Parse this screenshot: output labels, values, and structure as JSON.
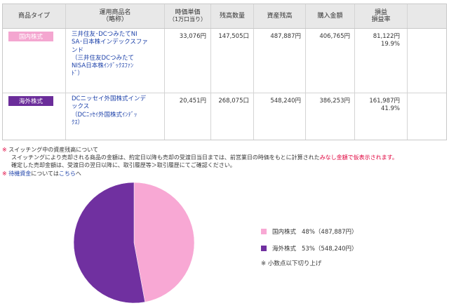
{
  "table": {
    "headers": {
      "type": "商品タイプ",
      "name_line1": "運用商品名",
      "name_line2": "（略称）",
      "unit_price_line1": "時価単価",
      "unit_price_line2": "（1万口当り）",
      "quantity": "残高数量",
      "balance": "資産残高",
      "purchase": "購入金額",
      "pl_line1": "損益",
      "pl_line2": "損益率"
    },
    "rows": [
      {
        "type": "国内株式",
        "type_color": "#f4a6d0",
        "name": "三井住友･DCつみたてNI\nSA･日本株インデックスファ\nンド\n（三井住友DCつみたて\nNISA日本株ｲﾝﾃﾞｯｸｽﾌｧﾝ\nﾄﾞ）",
        "unit_price": "33,076円",
        "quantity": "147,505口",
        "balance": "487,887円",
        "purchase": "406,765円",
        "pl": "81,122円",
        "pl_rate": "19.9%"
      },
      {
        "type": "海外株式",
        "type_color": "#6b2d9a",
        "name": "DCニッセイ外国株式インデ\nックス\n（DCﾆｯｾｲ外国株式ｲﾝﾃﾞｯ\nｸｽ）",
        "unit_price": "20,451円",
        "quantity": "268,075口",
        "balance": "548,240円",
        "purchase": "386,253円",
        "pl": "161,987円",
        "pl_rate": "41.9%"
      }
    ]
  },
  "notes": {
    "mark": "※",
    "line1": "スイッチング中の資産残高について",
    "line2_pre": "スイッチングにより売却される商品の金額は、約定日以降も売却の受渡日当日までは、前営業日の時価をもとに計算された",
    "line2_red": "みなし金額で仮表示されます。",
    "line3": "確定した売却金額は、受渡日の翌日以降に、取引履歴等＞取引履歴にてご確認ください。",
    "line4_link": "待機資金",
    "line4_mid": "については",
    "line4_link2": "こちら",
    "line4_end": "へ"
  },
  "chart_data": {
    "type": "pie",
    "categories": [
      "国内株式",
      "海外株式"
    ],
    "values": [
      487887,
      548240
    ],
    "colors": [
      "#f8a8d4",
      "#7030a0"
    ],
    "legend": [
      {
        "label": "国内株式",
        "text": "48%（487,887円）",
        "color": "#f8a8d4"
      },
      {
        "label": "海外株式",
        "text": "53%（548,240円）",
        "color": "#7030a0"
      }
    ],
    "note": "※ 小数点以下切り上げ"
  }
}
